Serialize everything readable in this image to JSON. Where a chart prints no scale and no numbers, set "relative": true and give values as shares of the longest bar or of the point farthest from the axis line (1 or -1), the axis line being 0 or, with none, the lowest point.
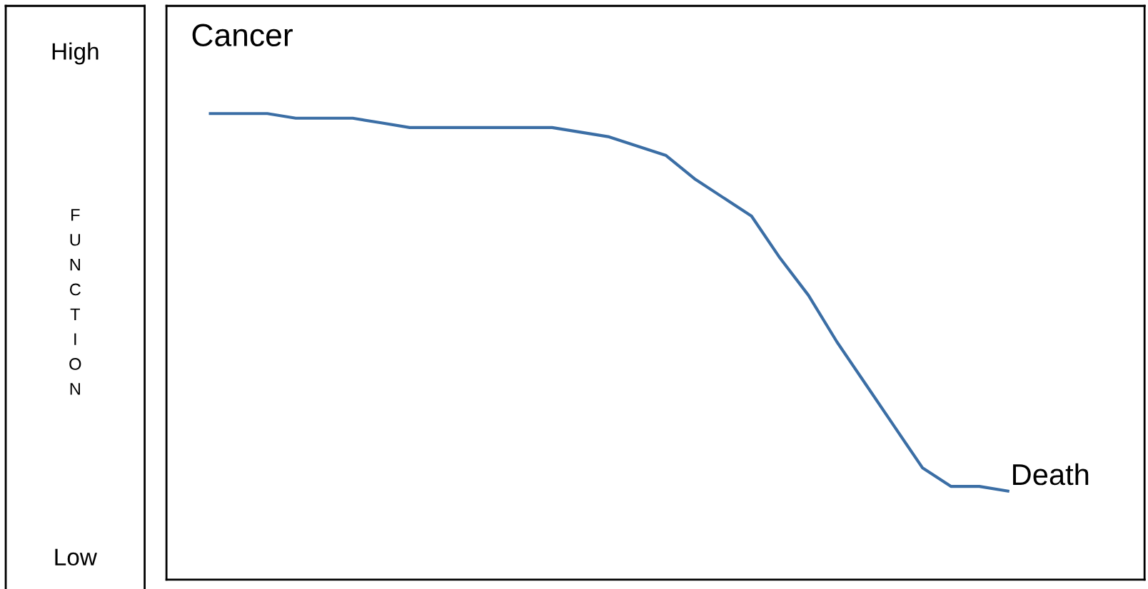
{
  "chart_data": {
    "type": "line",
    "title": "Cancer",
    "annotations": [
      "High",
      "FUNCTION",
      "Low"
    ],
    "relative": true,
    "tick_labels": false,
    "categories": [
      null,
      null,
      null,
      null,
      null,
      null,
      null,
      null,
      null,
      null,
      null,
      null,
      null,
      null,
      null,
      null,
      null,
      null,
      null,
      null,
      null,
      null,
      null,
      null,
      null,
      null,
      null,
      null,
      null
    ],
    "series": [
      {
        "name": "Death",
        "color": "#3b6ea5",
        "values": [
          1,
          1,
          1,
          0.99,
          0.99,
          0.99,
          0.98,
          0.97,
          0.97,
          0.97,
          0.97,
          0.97,
          0.97,
          0.96,
          0.95,
          0.93,
          0.91,
          0.86,
          0.82,
          0.78,
          0.69,
          0.61,
          0.51,
          0.42,
          0.33,
          0.24,
          0.2,
          0.2,
          0.19
        ]
      }
    ]
  }
}
